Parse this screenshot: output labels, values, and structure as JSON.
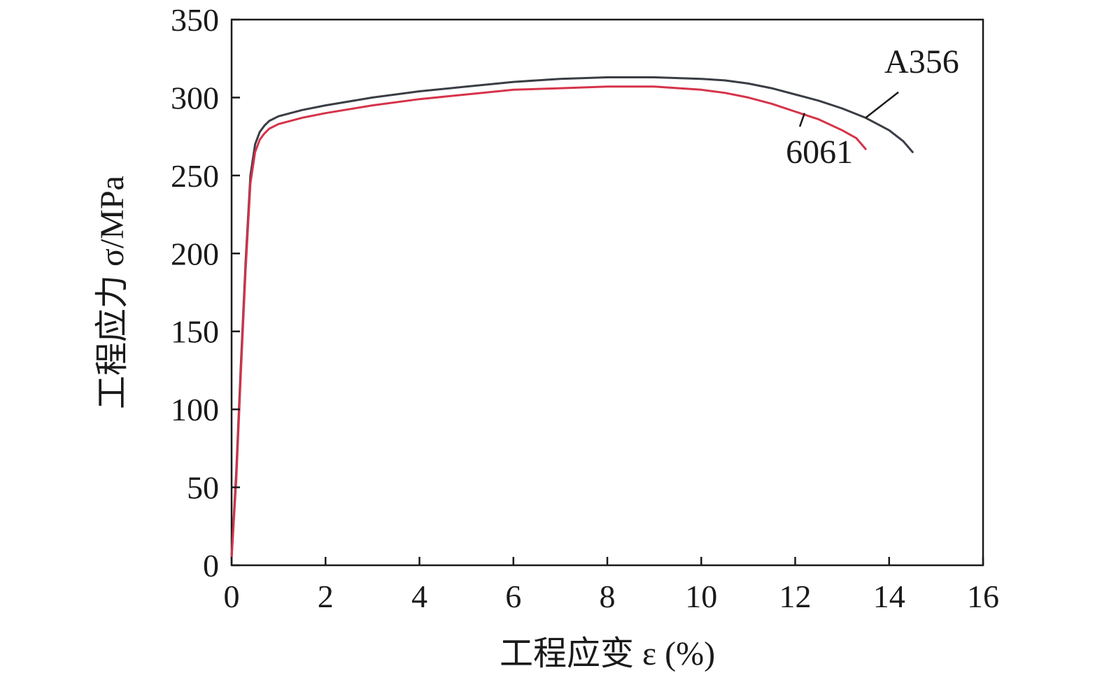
{
  "chart_data": {
    "type": "line",
    "xlabel": "工程应变 ε (%)",
    "ylabel": "工程应力 σ/MPa",
    "xlim": [
      0,
      16
    ],
    "ylim": [
      0,
      350
    ],
    "xticks": [
      "0",
      "2",
      "4",
      "6",
      "8",
      "10",
      "12",
      "14",
      "16"
    ],
    "yticks": [
      "0",
      "50",
      "100",
      "150",
      "200",
      "250",
      "300",
      "350"
    ],
    "grid": false,
    "legend": "none",
    "series": [
      {
        "name": "A356",
        "color": "#3a3d45",
        "x": [
          0,
          0.1,
          0.2,
          0.3,
          0.4,
          0.5,
          0.6,
          0.7,
          0.8,
          1,
          1.5,
          2,
          3,
          4,
          5,
          6,
          7,
          8,
          9,
          10,
          10.5,
          11,
          11.5,
          12,
          12.5,
          13,
          13.5,
          14,
          14.3,
          14.5
        ],
        "y": [
          5,
          60,
          130,
          195,
          250,
          270,
          278,
          282,
          285,
          288,
          292,
          295,
          300,
          304,
          307,
          310,
          312,
          313,
          313,
          312,
          311,
          309,
          306,
          302,
          298,
          293,
          287,
          279,
          272,
          265
        ]
      },
      {
        "name": "6061",
        "color": "#d6334a",
        "x": [
          0,
          0.1,
          0.2,
          0.3,
          0.4,
          0.5,
          0.6,
          0.7,
          0.8,
          1,
          1.5,
          2,
          3,
          4,
          5,
          6,
          7,
          8,
          9,
          10,
          10.5,
          11,
          11.5,
          12,
          12.5,
          13,
          13.3,
          13.5
        ],
        "y": [
          5,
          55,
          125,
          190,
          245,
          265,
          273,
          277,
          280,
          283,
          287,
          290,
          295,
          299,
          302,
          305,
          306,
          307,
          307,
          305,
          303,
          300,
          296,
          291,
          286,
          279,
          274,
          267
        ]
      }
    ],
    "annotations": [
      {
        "text": "A356",
        "x": 13.9,
        "y": 316,
        "point_x": 13.5,
        "point_y": 287
      },
      {
        "text": "6061",
        "x": 11.8,
        "y": 258,
        "point_x": 12.2,
        "point_y": 290
      }
    ]
  }
}
